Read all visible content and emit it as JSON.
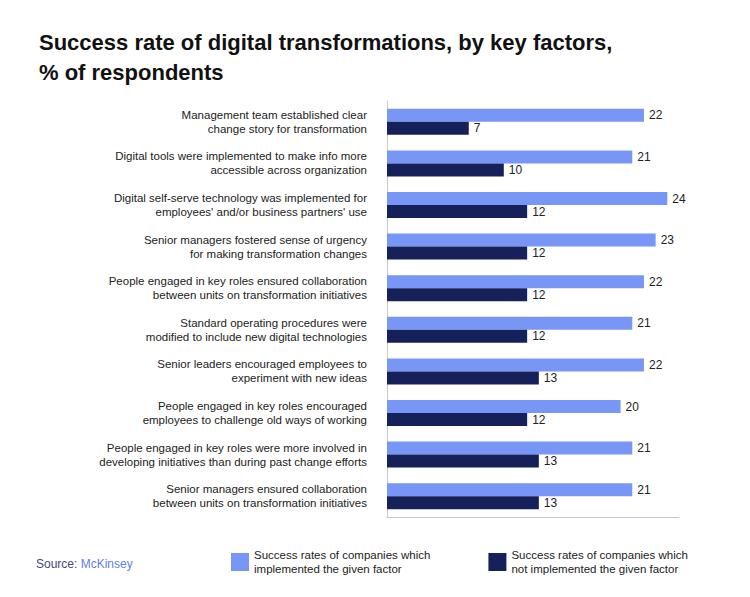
{
  "chart_data": {
    "type": "bar",
    "orientation": "horizontal",
    "title": "Success rate of digital transformations, by key factors,\n% of respondents",
    "source": "Source: McKinsey",
    "categories": [
      "Management team established clear\nchange story for transformation",
      "Digital tools were implemented to make info more\naccessible across organization",
      "Digital self-serve technology was implemented for\nemployees' and/or business partners' use",
      "Senior managers fostered sense of urgency\nfor making transformation changes",
      "People engaged in key roles ensured collaboration\nbetween units on transformation initiatives",
      "Standard operating procedures were\nmodified to include new digital technologies",
      "Senior leaders encouraged employees to\nexperiment with new ideas",
      "People engaged in key roles encouraged\nemployees to challenge old ways of working",
      "People engaged in key roles were more involved in\ndeveloping initiatives than during past change efforts",
      "Senior managers ensured collaboration\nbetween units on transformation initiatives"
    ],
    "series": [
      {
        "name": "Success rates of companies which\nimplemented the given factor",
        "color": "#7896f5",
        "values": [
          22,
          21,
          24,
          23,
          22,
          21,
          22,
          20,
          21,
          21
        ]
      },
      {
        "name": "Success rates of companies which\nnot implemented the given factor",
        "color": "#16215a",
        "values": [
          7,
          10,
          12,
          12,
          12,
          12,
          13,
          12,
          13,
          13
        ]
      }
    ],
    "xlim": [
      0,
      25
    ],
    "grid": false,
    "legend": "bottom",
    "data_labels": true,
    "tick_labels": "y"
  }
}
